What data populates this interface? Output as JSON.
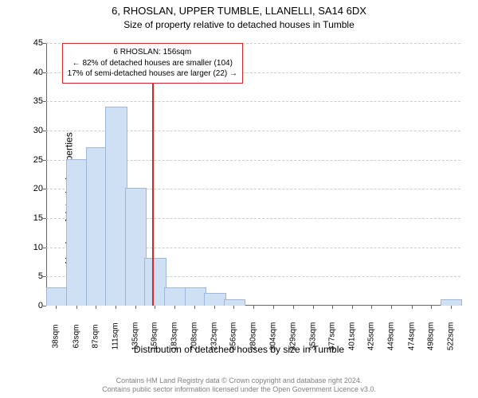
{
  "title_main": "6, RHOSLAN, UPPER TUMBLE, LLANELLI, SA14 6DX",
  "title_sub": "Size of property relative to detached houses in Tumble",
  "ylabel": "Number of detached properties",
  "xlabel": "Distribution of detached houses by size in Tumble",
  "license_line1": "Contains HM Land Registry data © Crown copyright and database right 2024.",
  "license_line2": "Contains public sector information licensed under the Open Government Licence v3.0.",
  "chart": {
    "type": "histogram",
    "background_color": "#ffffff",
    "grid_color": "#cccccc",
    "axis_color": "#666666",
    "bar_fill": "#cfe0f5",
    "bar_border": "#9fb8da",
    "bar_width_ratio": 1.0,
    "xlim": [
      26,
      534
    ],
    "ylim": [
      0,
      45
    ],
    "ytick_step": 5,
    "xticks": [
      38,
      63,
      87,
      111,
      135,
      159,
      183,
      208,
      232,
      256,
      280,
      304,
      329,
      353,
      377,
      401,
      425,
      449,
      474,
      498,
      522
    ],
    "xtick_labels": [
      "38sqm",
      "63sqm",
      "87sqm",
      "111sqm",
      "135sqm",
      "159sqm",
      "183sqm",
      "208sqm",
      "232sqm",
      "256sqm",
      "280sqm",
      "304sqm",
      "329sqm",
      "353sqm",
      "377sqm",
      "401sqm",
      "425sqm",
      "449sqm",
      "474sqm",
      "498sqm",
      "522sqm"
    ],
    "yticks": [
      0,
      5,
      10,
      15,
      20,
      25,
      30,
      35,
      40,
      45
    ],
    "values": [
      3,
      25,
      27,
      34,
      20,
      8,
      3,
      3,
      2,
      1,
      0,
      0,
      0,
      0,
      0,
      0,
      0,
      0,
      0,
      0,
      1
    ],
    "marker": {
      "x": 156,
      "color": "#d62728"
    },
    "annotation": {
      "border_color": "#d62728",
      "background_color": "#ffffff",
      "font_size": 10,
      "title": "6 RHOSLAN: 156sqm",
      "line1": "← 82% of detached houses are smaller (104)",
      "line2": "17% of semi-detached houses are larger (22) →"
    },
    "label_fontsize": 12,
    "tick_fontsize": 10
  }
}
